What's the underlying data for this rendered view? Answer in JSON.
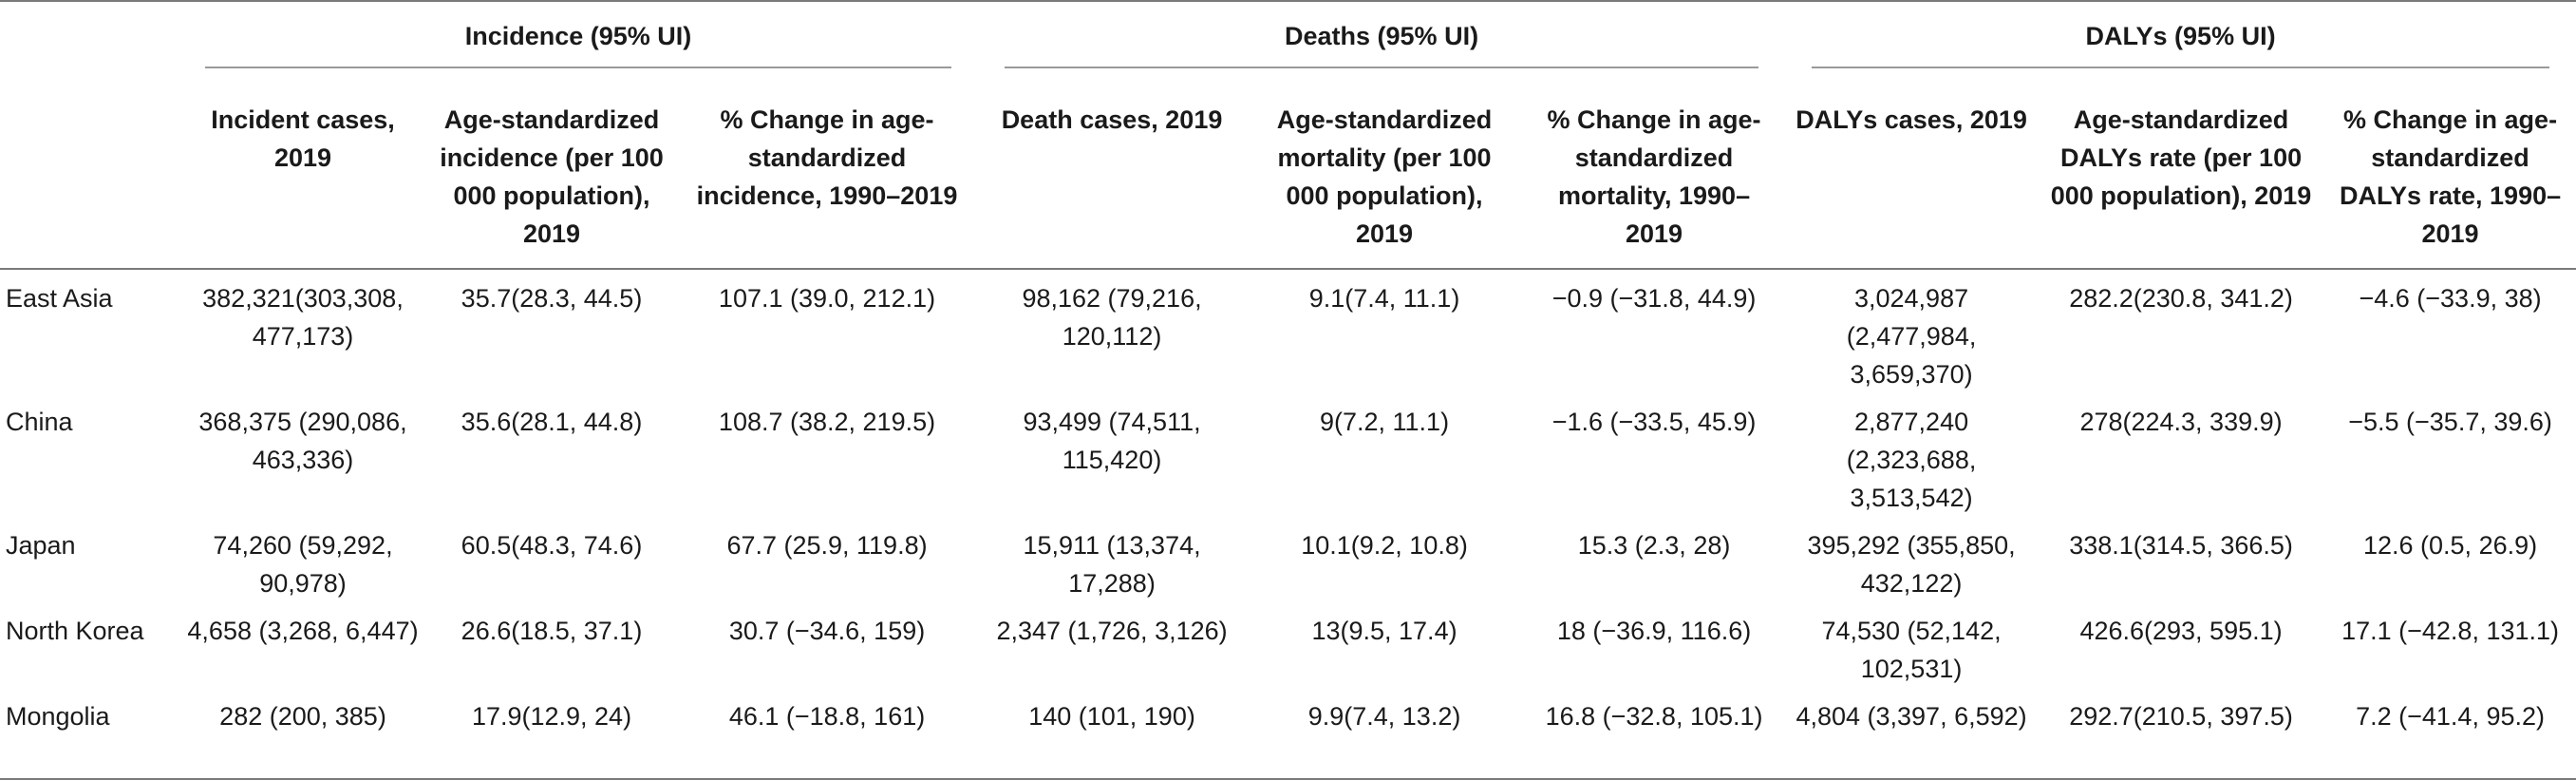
{
  "table": {
    "groups": [
      {
        "label": "Incidence (95% UI)"
      },
      {
        "label": "Deaths (95% UI)"
      },
      {
        "label": "DALYs (95% UI)"
      }
    ],
    "subheaders": [
      "Incident cases, 2019",
      "Age-standardized incidence (per 100 000 population), 2019",
      "% Change in age-standardized incidence, 1990–2019",
      "Death cases, 2019",
      "Age-standardized mortality (per 100 000 population), 2019",
      "% Change in age-standardized mortality, 1990–2019",
      "DALYs cases, 2019",
      "Age-standardized DALYs rate (per 100 000 population), 2019",
      "% Change in age-standardized DALYs rate, 1990–2019"
    ],
    "rows": [
      {
        "region": "East Asia",
        "cells": [
          "382,321(303,308, 477,173)",
          "35.7(28.3, 44.5)",
          "107.1 (39.0, 212.1)",
          "98,162 (79,216, 120,112)",
          "9.1(7.4, 11.1)",
          "−0.9 (−31.8, 44.9)",
          "3,024,987 (2,477,984, 3,659,370)",
          "282.2(230.8, 341.2)",
          "−4.6 (−33.9, 38)"
        ]
      },
      {
        "region": "China",
        "cells": [
          "368,375 (290,086, 463,336)",
          "35.6(28.1, 44.8)",
          "108.7 (38.2, 219.5)",
          "93,499 (74,511, 115,420)",
          "9(7.2, 11.1)",
          "−1.6 (−33.5, 45.9)",
          "2,877,240 (2,323,688, 3,513,542)",
          "278(224.3, 339.9)",
          "−5.5 (−35.7, 39.6)"
        ]
      },
      {
        "region": "Japan",
        "cells": [
          "74,260 (59,292, 90,978)",
          "60.5(48.3, 74.6)",
          "67.7 (25.9, 119.8)",
          "15,911 (13,374, 17,288)",
          "10.1(9.2, 10.8)",
          "15.3 (2.3, 28)",
          "395,292 (355,850, 432,122)",
          "338.1(314.5, 366.5)",
          "12.6 (0.5, 26.9)"
        ]
      },
      {
        "region": "North Korea",
        "cells": [
          "4,658 (3,268, 6,447)",
          "26.6(18.5, 37.1)",
          "30.7 (−34.6, 159)",
          "2,347 (1,726, 3,126)",
          "13(9.5, 17.4)",
          "18 (−36.9, 116.6)",
          "74,530 (52,142, 102,531)",
          "426.6(293, 595.1)",
          "17.1 (−42.8, 131.1)"
        ]
      },
      {
        "region": "Mongolia",
        "cells": [
          "282 (200, 385)",
          "17.9(12.9, 24)",
          "46.1 (−18.8, 161)",
          "140 (101, 190)",
          "9.9(7.4, 13.2)",
          "16.8 (−32.8, 105.1)",
          "4,804 (3,397, 6,592)",
          "292.7(210.5, 397.5)",
          "7.2 (−41.4, 95.2)"
        ]
      }
    ]
  }
}
